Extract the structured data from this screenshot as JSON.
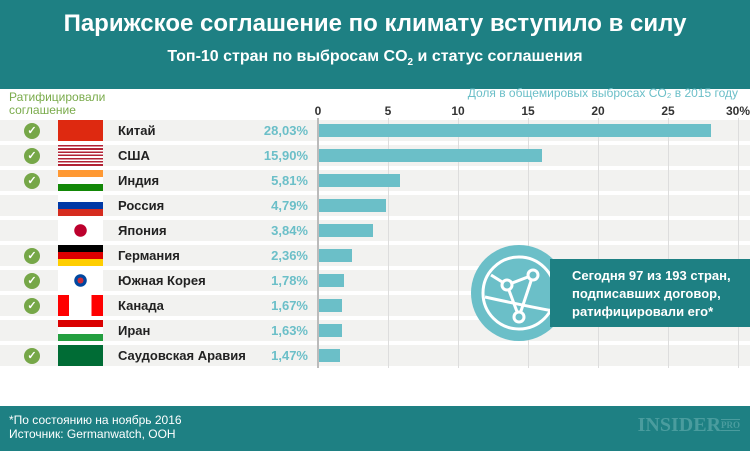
{
  "header": {
    "title": "Парижское соглашение по климату вступило в силу",
    "subtitle": "Топ-10 стран по выбросам CO",
    "subtitle_sub": "2",
    "subtitle_end": " и статус соглашения"
  },
  "ratified_label": "Ратифицировали соглашение",
  "callout": "Сегодня 97 из 193 стран, подписавших договор, ратифицировали его*",
  "footer": {
    "note": "*По состоянию на ноябрь 2016",
    "source": "Источник: Germanwatch, ООН",
    "logo": "INSIDER",
    "logo_sup": "PRO"
  },
  "colors": {
    "header": "#1e8083",
    "bar": "#6bbfc8",
    "check": "#76a748"
  },
  "chart_data": {
    "type": "bar",
    "orientation": "horizontal",
    "xlabel": "Доля в общемировых выбросах CO₂ в 2015 году",
    "xlim": [
      0,
      30
    ],
    "ticks": [
      "0",
      "5",
      "10",
      "15",
      "20",
      "25",
      "30%"
    ],
    "tick_values": [
      0,
      5,
      10,
      15,
      20,
      25,
      30
    ],
    "grid": true,
    "categories": [
      "Китай",
      "США",
      "Индия",
      "Россия",
      "Япония",
      "Германия",
      "Южная Корея",
      "Канада",
      "Иран",
      "Саудовская Аравия"
    ],
    "values": [
      28.03,
      15.9,
      5.81,
      4.79,
      3.84,
      2.36,
      1.78,
      1.67,
      1.63,
      1.47
    ],
    "labels": [
      "28,03%",
      "15,90%",
      "5,81%",
      "4,79%",
      "3,84%",
      "2,36%",
      "1,78%",
      "1,67%",
      "1,63%",
      "1,47%"
    ],
    "ratified": [
      true,
      true,
      true,
      false,
      false,
      true,
      true,
      true,
      false,
      true
    ],
    "flags": [
      "china",
      "usa",
      "india",
      "russia",
      "japan",
      "germany",
      "south-korea",
      "canada",
      "iran",
      "saudi-arabia"
    ]
  }
}
